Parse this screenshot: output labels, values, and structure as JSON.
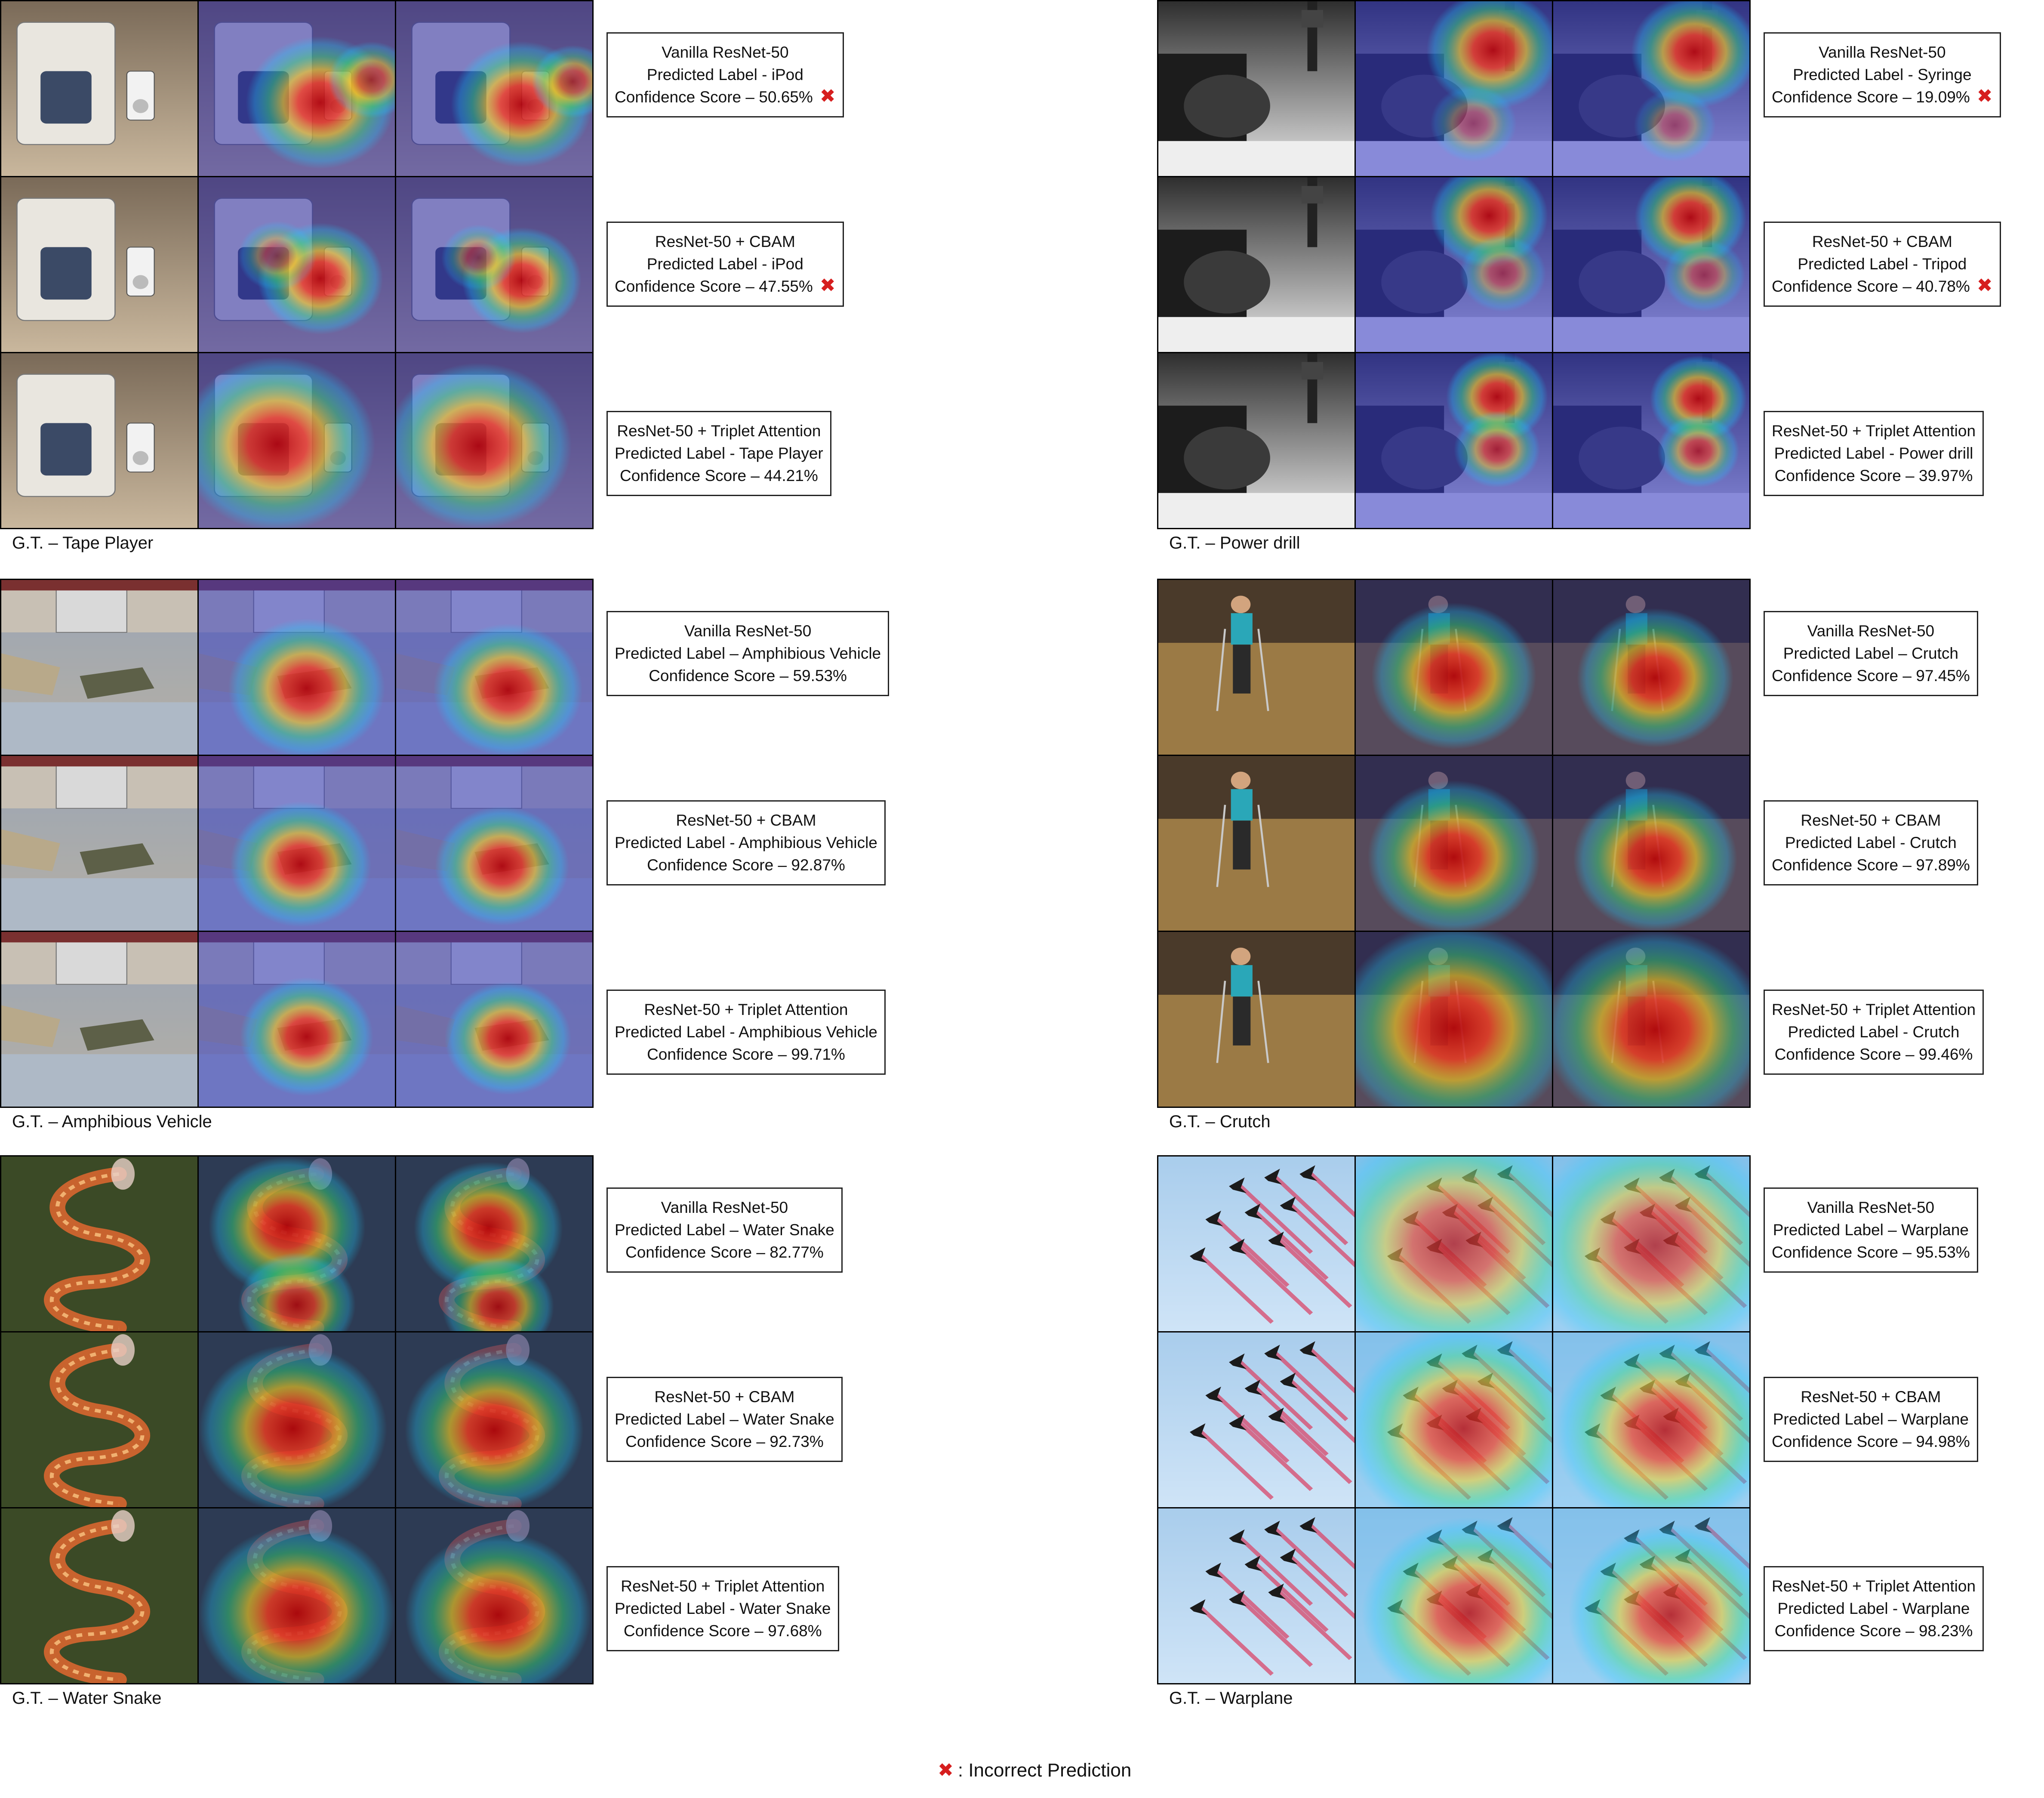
{
  "figure": {
    "legend": {
      "mark": "✖",
      "text": ": Incorrect Prediction"
    },
    "panels": [
      {
        "ground_truth": "G.T. – Tape Player",
        "scene": "tape-player",
        "rows": [
          {
            "model": "Vanilla ResNet-50",
            "label": "Predicted Label -  iPod",
            "score": "Confidence Score – 50.65%",
            "incorrect": true
          },
          {
            "model": "ResNet-50 + CBAM",
            "label": "Predicted Label -  iPod",
            "score": "Confidence Score – 47.55%",
            "incorrect": true
          },
          {
            "model": "ResNet-50 + Triplet Attention",
            "label": "Predicted Label -  Tape Player",
            "score": "Confidence Score – 44.21%",
            "incorrect": false
          }
        ]
      },
      {
        "ground_truth": "G.T. – Power drill",
        "scene": "power-drill",
        "rows": [
          {
            "model": "Vanilla ResNet-50",
            "label": "Predicted Label - Syringe",
            "score": "Confidence Score – 19.09%",
            "incorrect": true
          },
          {
            "model": "ResNet-50 + CBAM",
            "label": "Predicted Label -  Tripod",
            "score": "Confidence Score – 40.78%",
            "incorrect": true
          },
          {
            "model": "ResNet-50 + Triplet Attention",
            "label": "Predicted Label -  Power drill",
            "score": "Confidence Score – 39.97%",
            "incorrect": false
          }
        ]
      },
      {
        "ground_truth": "G.T. – Amphibious Vehicle",
        "scene": "amphibious-vehicle",
        "rows": [
          {
            "model": "Vanilla ResNet-50",
            "label": "Predicted Label – Amphibious Vehicle",
            "score": "Confidence Score – 59.53%",
            "incorrect": false
          },
          {
            "model": "ResNet-50 + CBAM",
            "label": "Predicted Label -  Amphibious Vehicle",
            "score": "Confidence Score – 92.87%",
            "incorrect": false
          },
          {
            "model": "ResNet-50 + Triplet Attention",
            "label": "Predicted Label -  Amphibious Vehicle",
            "score": "Confidence Score – 99.71%",
            "incorrect": false
          }
        ]
      },
      {
        "ground_truth": "G.T. – Crutch",
        "scene": "crutch",
        "rows": [
          {
            "model": "Vanilla ResNet-50",
            "label": "Predicted Label – Crutch",
            "score": "Confidence Score – 97.45%",
            "incorrect": false
          },
          {
            "model": "ResNet-50 + CBAM",
            "label": "Predicted Label -  Crutch",
            "score": "Confidence Score – 97.89%",
            "incorrect": false
          },
          {
            "model": "ResNet-50 + Triplet Attention",
            "label": "Predicted Label -  Crutch",
            "score": "Confidence Score – 99.46%",
            "incorrect": false
          }
        ]
      },
      {
        "ground_truth": "G.T. – Water Snake",
        "scene": "water-snake",
        "rows": [
          {
            "model": "Vanilla ResNet-50",
            "label": "Predicted Label – Water Snake",
            "score": "Confidence Score – 82.77%",
            "incorrect": false
          },
          {
            "model": "ResNet-50 + CBAM",
            "label": "Predicted Label – Water Snake",
            "score": "Confidence Score – 92.73%",
            "incorrect": false
          },
          {
            "model": "ResNet-50 + Triplet Attention",
            "label": "Predicted Label -  Water Snake",
            "score": "Confidence Score – 97.68%",
            "incorrect": false
          }
        ]
      },
      {
        "ground_truth": "G.T. – Warplane",
        "scene": "warplane",
        "rows": [
          {
            "model": "Vanilla ResNet-50",
            "label": "Predicted Label – Warplane",
            "score": "Confidence Score – 95.53%",
            "incorrect": false
          },
          {
            "model": "ResNet-50 + CBAM",
            "label": "Predicted Label – Warplane",
            "score": "Confidence Score – 94.98%",
            "incorrect": false
          },
          {
            "model": "ResNet-50 + Triplet Attention",
            "label": "Predicted Label -  Warplane",
            "score": "Confidence Score – 98.23%",
            "incorrect": false
          }
        ]
      }
    ]
  }
}
